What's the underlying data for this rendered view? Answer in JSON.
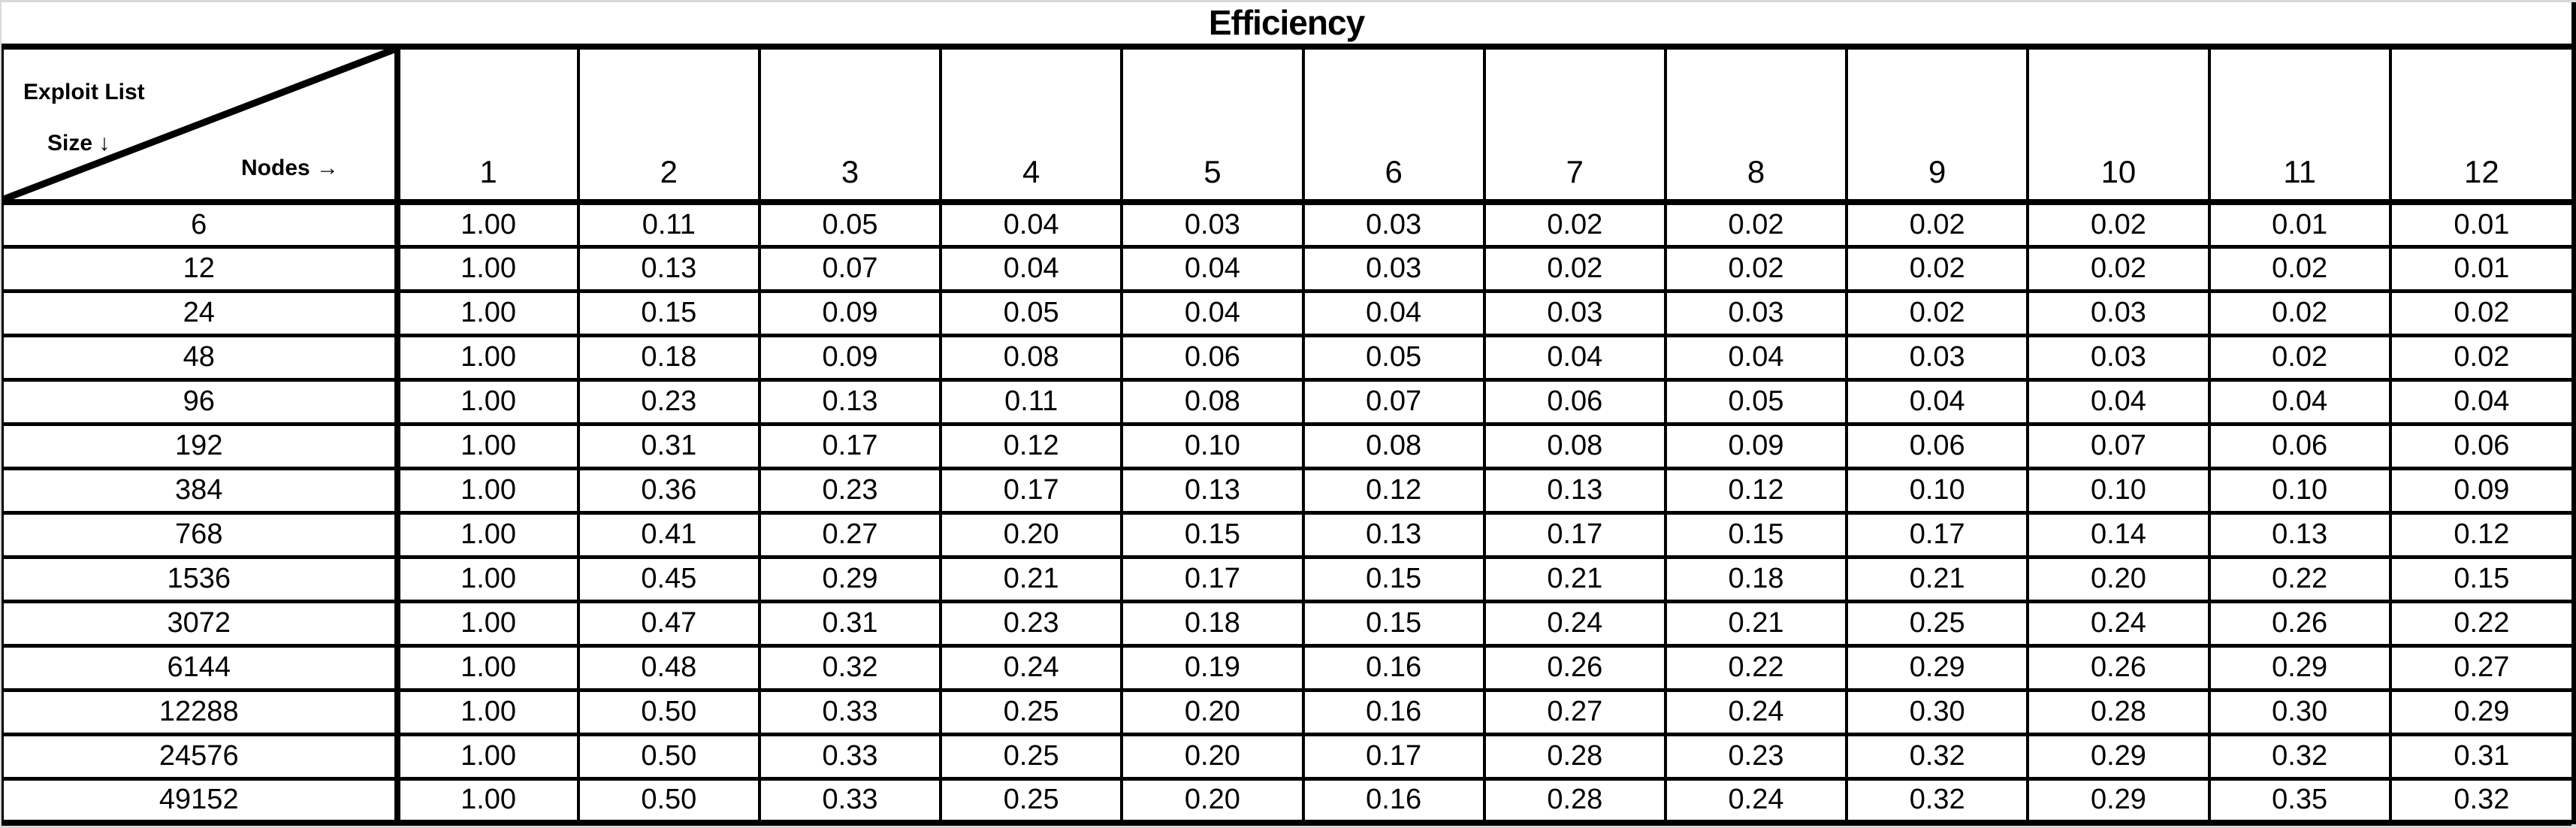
{
  "title": "Efficiency",
  "corner": {
    "line1": "Exploit List",
    "line2": "Size ↓",
    "line3": "Nodes →"
  },
  "table": {
    "columns": [
      "1",
      "2",
      "3",
      "4",
      "5",
      "6",
      "7",
      "8",
      "9",
      "10",
      "11",
      "12"
    ],
    "rows": [
      {
        "size": "6",
        "values": [
          "1.00",
          "0.11",
          "0.05",
          "0.04",
          "0.03",
          "0.03",
          "0.02",
          "0.02",
          "0.02",
          "0.02",
          "0.01",
          "0.01"
        ]
      },
      {
        "size": "12",
        "values": [
          "1.00",
          "0.13",
          "0.07",
          "0.04",
          "0.04",
          "0.03",
          "0.02",
          "0.02",
          "0.02",
          "0.02",
          "0.02",
          "0.01"
        ]
      },
      {
        "size": "24",
        "values": [
          "1.00",
          "0.15",
          "0.09",
          "0.05",
          "0.04",
          "0.04",
          "0.03",
          "0.03",
          "0.02",
          "0.03",
          "0.02",
          "0.02"
        ]
      },
      {
        "size": "48",
        "values": [
          "1.00",
          "0.18",
          "0.09",
          "0.08",
          "0.06",
          "0.05",
          "0.04",
          "0.04",
          "0.03",
          "0.03",
          "0.02",
          "0.02"
        ]
      },
      {
        "size": "96",
        "values": [
          "1.00",
          "0.23",
          "0.13",
          "0.11",
          "0.08",
          "0.07",
          "0.06",
          "0.05",
          "0.04",
          "0.04",
          "0.04",
          "0.04"
        ]
      },
      {
        "size": "192",
        "values": [
          "1.00",
          "0.31",
          "0.17",
          "0.12",
          "0.10",
          "0.08",
          "0.08",
          "0.09",
          "0.06",
          "0.07",
          "0.06",
          "0.06"
        ]
      },
      {
        "size": "384",
        "values": [
          "1.00",
          "0.36",
          "0.23",
          "0.17",
          "0.13",
          "0.12",
          "0.13",
          "0.12",
          "0.10",
          "0.10",
          "0.10",
          "0.09"
        ]
      },
      {
        "size": "768",
        "values": [
          "1.00",
          "0.41",
          "0.27",
          "0.20",
          "0.15",
          "0.13",
          "0.17",
          "0.15",
          "0.17",
          "0.14",
          "0.13",
          "0.12"
        ]
      },
      {
        "size": "1536",
        "values": [
          "1.00",
          "0.45",
          "0.29",
          "0.21",
          "0.17",
          "0.15",
          "0.21",
          "0.18",
          "0.21",
          "0.20",
          "0.22",
          "0.15"
        ]
      },
      {
        "size": "3072",
        "values": [
          "1.00",
          "0.47",
          "0.31",
          "0.23",
          "0.18",
          "0.15",
          "0.24",
          "0.21",
          "0.25",
          "0.24",
          "0.26",
          "0.22"
        ]
      },
      {
        "size": "6144",
        "values": [
          "1.00",
          "0.48",
          "0.32",
          "0.24",
          "0.19",
          "0.16",
          "0.26",
          "0.22",
          "0.29",
          "0.26",
          "0.29",
          "0.27"
        ]
      },
      {
        "size": "12288",
        "values": [
          "1.00",
          "0.50",
          "0.33",
          "0.25",
          "0.20",
          "0.16",
          "0.27",
          "0.24",
          "0.30",
          "0.28",
          "0.30",
          "0.29"
        ]
      },
      {
        "size": "24576",
        "values": [
          "1.00",
          "0.50",
          "0.33",
          "0.25",
          "0.20",
          "0.17",
          "0.28",
          "0.23",
          "0.32",
          "0.29",
          "0.32",
          "0.31"
        ]
      },
      {
        "size": "49152",
        "values": [
          "1.00",
          "0.50",
          "0.33",
          "0.25",
          "0.20",
          "0.16",
          "0.28",
          "0.24",
          "0.32",
          "0.29",
          "0.35",
          "0.32"
        ]
      }
    ]
  },
  "colors": {
    "border": "#000000",
    "cell_background": "#ffffff",
    "frame_background": "#d9d9d9",
    "text": "#000000"
  },
  "chart_data": {
    "type": "table",
    "title": "Efficiency",
    "row_axis_label": "Exploit List Size",
    "col_axis_label": "Nodes",
    "columns": [
      1,
      2,
      3,
      4,
      5,
      6,
      7,
      8,
      9,
      10,
      11,
      12
    ],
    "rows": [
      6,
      12,
      24,
      48,
      96,
      192,
      384,
      768,
      1536,
      3072,
      6144,
      12288,
      24576,
      49152
    ],
    "values": [
      [
        1.0,
        0.11,
        0.05,
        0.04,
        0.03,
        0.03,
        0.02,
        0.02,
        0.02,
        0.02,
        0.01,
        0.01
      ],
      [
        1.0,
        0.13,
        0.07,
        0.04,
        0.04,
        0.03,
        0.02,
        0.02,
        0.02,
        0.02,
        0.02,
        0.01
      ],
      [
        1.0,
        0.15,
        0.09,
        0.05,
        0.04,
        0.04,
        0.03,
        0.03,
        0.02,
        0.03,
        0.02,
        0.02
      ],
      [
        1.0,
        0.18,
        0.09,
        0.08,
        0.06,
        0.05,
        0.04,
        0.04,
        0.03,
        0.03,
        0.02,
        0.02
      ],
      [
        1.0,
        0.23,
        0.13,
        0.11,
        0.08,
        0.07,
        0.06,
        0.05,
        0.04,
        0.04,
        0.04,
        0.04
      ],
      [
        1.0,
        0.31,
        0.17,
        0.12,
        0.1,
        0.08,
        0.08,
        0.09,
        0.06,
        0.07,
        0.06,
        0.06
      ],
      [
        1.0,
        0.36,
        0.23,
        0.17,
        0.13,
        0.12,
        0.13,
        0.12,
        0.1,
        0.1,
        0.1,
        0.09
      ],
      [
        1.0,
        0.41,
        0.27,
        0.2,
        0.15,
        0.13,
        0.17,
        0.15,
        0.17,
        0.14,
        0.13,
        0.12
      ],
      [
        1.0,
        0.45,
        0.29,
        0.21,
        0.17,
        0.15,
        0.21,
        0.18,
        0.21,
        0.2,
        0.22,
        0.15
      ],
      [
        1.0,
        0.47,
        0.31,
        0.23,
        0.18,
        0.15,
        0.24,
        0.21,
        0.25,
        0.24,
        0.26,
        0.22
      ],
      [
        1.0,
        0.48,
        0.32,
        0.24,
        0.19,
        0.16,
        0.26,
        0.22,
        0.29,
        0.26,
        0.29,
        0.27
      ],
      [
        1.0,
        0.5,
        0.33,
        0.25,
        0.2,
        0.16,
        0.27,
        0.24,
        0.3,
        0.28,
        0.3,
        0.29
      ],
      [
        1.0,
        0.5,
        0.33,
        0.25,
        0.2,
        0.17,
        0.28,
        0.23,
        0.32,
        0.29,
        0.32,
        0.31
      ],
      [
        1.0,
        0.5,
        0.33,
        0.25,
        0.2,
        0.16,
        0.28,
        0.24,
        0.32,
        0.29,
        0.35,
        0.32
      ]
    ]
  }
}
